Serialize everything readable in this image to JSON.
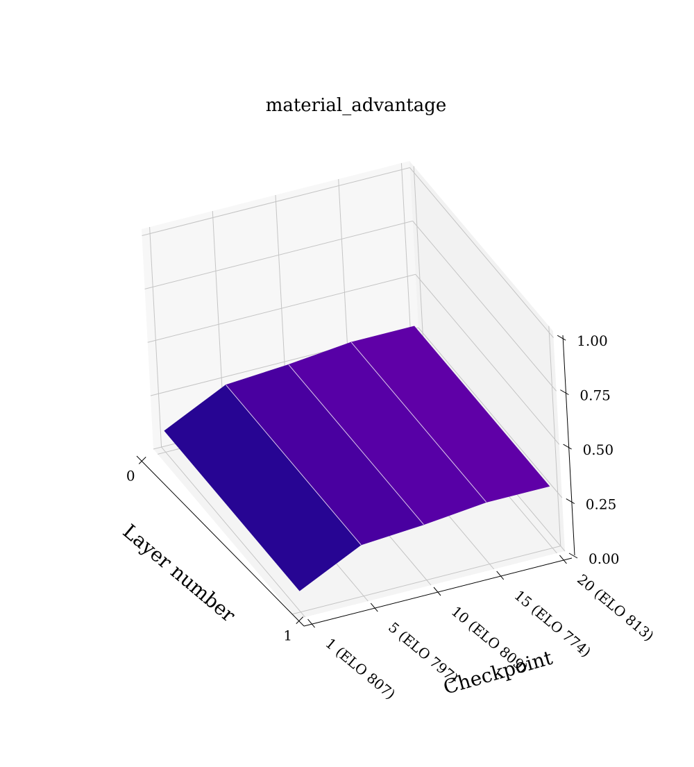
{
  "chart_data": {
    "type": "surface3d",
    "title": "material_advantage",
    "xlabel": "Checkpoint",
    "ylabel": "Layer number",
    "x_categories": [
      "1 (ELO 807)",
      "5 (ELO 797)",
      "10 (ELO 809)",
      "15 (ELO 774)",
      "20 (ELO 813)"
    ],
    "y_ticks": [
      "0",
      "1"
    ],
    "z_ticks": [
      "0.00",
      "0.25",
      "0.50",
      "0.75",
      "1.00"
    ],
    "zlim": [
      0,
      1
    ],
    "grid": true,
    "surface": {
      "layer_0": [
        0.1,
        0.24,
        0.26,
        0.29,
        0.29
      ],
      "layer_1": [
        0.1,
        0.24,
        0.26,
        0.29,
        0.29
      ]
    },
    "colors": {
      "strip_1": "#270593",
      "strip_2": "#4900a0",
      "strip_3": "#5700a6",
      "strip_4": "#5f00a7",
      "pane_back": "#f7f7f7",
      "pane_side": "#f2f2f2",
      "pane_floor": "#f4f4f4",
      "grid": "#c4c4c4"
    }
  }
}
